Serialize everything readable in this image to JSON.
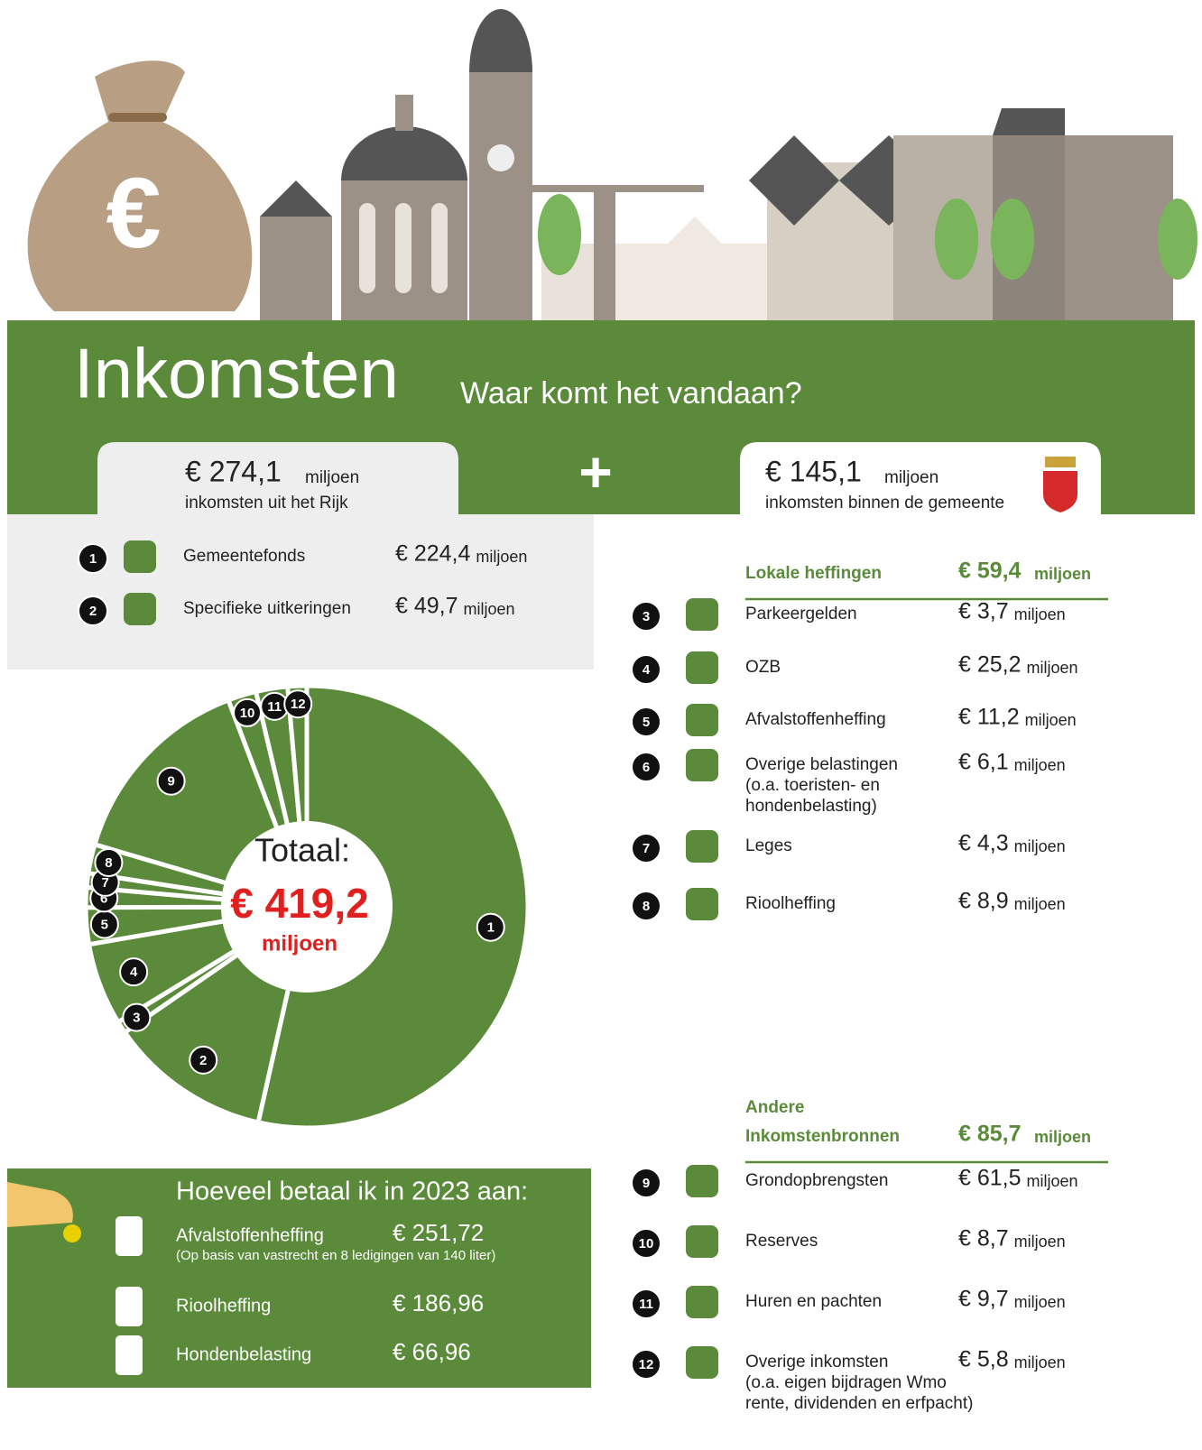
{
  "header": {
    "bag_symbol": "€",
    "title": "Inkomsten",
    "subtitle": "Waar komt het vandaan?",
    "plus": "+"
  },
  "rijk": {
    "amount": "€ 274,1",
    "unit": "miljoen",
    "caption": "inkomsten uit het Rijk"
  },
  "gemeente": {
    "amount": "€ 145,1",
    "unit": "miljoen",
    "caption": "inkomsten binnen de gemeente"
  },
  "groups": [
    {
      "title_lines": [
        "Lokale heffingen"
      ],
      "amount": "€ 59,4",
      "unit": "miljoen"
    },
    {
      "title_lines": [
        "Andere",
        "Inkomstenbronnen"
      ],
      "amount": "€ 85,7",
      "unit": "miljoen"
    }
  ],
  "items": [
    {
      "number": "1",
      "name": "Gemeentefonds",
      "amount": "€ 224,4",
      "unit": "miljoen",
      "value": 224.4
    },
    {
      "number": "2",
      "name": "Specifieke uitkeringen",
      "amount": "€ 49,7",
      "unit": "miljoen",
      "value": 49.7
    },
    {
      "number": "3",
      "name": "Parkeergelden",
      "amount": "€ 3,7",
      "unit": "miljoen",
      "value": 3.7
    },
    {
      "number": "4",
      "name": "OZB",
      "amount": "€ 25,2",
      "unit": "miljoen",
      "value": 25.2
    },
    {
      "number": "5",
      "name": "Afvalstoffenheffing",
      "amount": "€ 11,2",
      "unit": "miljoen",
      "value": 11.2
    },
    {
      "number": "6",
      "name": "Overige belastingen",
      "note_lines": [
        "(o.a. toeristen- en",
        "hondenbelasting)"
      ],
      "amount": "€ 6,1",
      "unit": "miljoen",
      "value": 6.1
    },
    {
      "number": "7",
      "name": "Leges",
      "amount": "€ 4,3",
      "unit": "miljoen",
      "value": 4.3
    },
    {
      "number": "8",
      "name": "Rioolheffing",
      "amount": "€ 8,9",
      "unit": "miljoen",
      "value": 8.9
    },
    {
      "number": "9",
      "name": "Grondopbrengsten",
      "amount": "€ 61,5",
      "unit": "miljoen",
      "value": 61.5
    },
    {
      "number": "10",
      "name": "Reserves",
      "amount": "€ 8,7",
      "unit": "miljoen",
      "value": 8.7
    },
    {
      "number": "11",
      "name": "Huren en pachten",
      "amount": "€ 9,7",
      "unit": "miljoen",
      "value": 9.7
    },
    {
      "number": "12",
      "name": "Overige inkomsten",
      "note_lines": [
        "(o.a. eigen bijdragen Wmo",
        "rente, dividenden en erfpacht)"
      ],
      "amount": "€ 5,8",
      "unit": "miljoen",
      "value": 5.8
    }
  ],
  "total": {
    "label": "Totaal:",
    "amount": "€ 419,2",
    "unit": "miljoen"
  },
  "betaal": {
    "title": "Hoeveel betaal ik in 2023 aan:",
    "rows": [
      {
        "name": "Afvalstoffenheffing",
        "amount": "€ 251,72",
        "note": "(Op basis van vastrecht en 8 ledigingen van 140 liter)"
      },
      {
        "name": "Rioolheffing",
        "amount": "€ 186,96"
      },
      {
        "name": "Hondenbelasting",
        "amount": "€ 66,96"
      }
    ]
  }
}
